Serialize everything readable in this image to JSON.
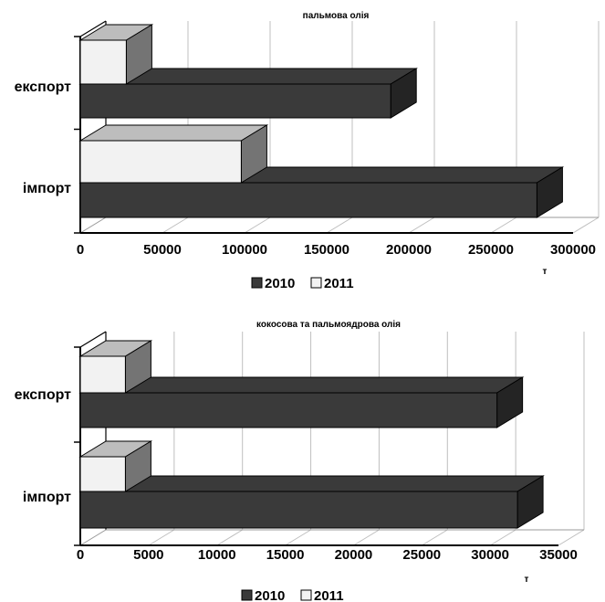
{
  "chart_data": [
    {
      "type": "bar",
      "orientation": "horizontal",
      "title": "пальмова олія",
      "categories": [
        "експорт",
        "імпорт"
      ],
      "series": [
        {
          "name": "2010",
          "values": [
            189000,
            278000
          ],
          "color": "#3a3a3a"
        },
        {
          "name": "2011",
          "values": [
            28000,
            98000
          ],
          "color": "#f2f2f2"
        }
      ],
      "xlim": [
        0,
        300000
      ],
      "xticks": [
        "0",
        "50000",
        "100000",
        "150000",
        "200000",
        "250000",
        "300000"
      ],
      "unit": "т",
      "grid": true,
      "legend": "bottom"
    },
    {
      "type": "bar",
      "orientation": "horizontal",
      "title": "кокосова та пальмоядрова олія",
      "categories": [
        "експорт",
        "імпорт"
      ],
      "series": [
        {
          "name": "2010",
          "values": [
            30500,
            32000
          ],
          "color": "#3a3a3a"
        },
        {
          "name": "2011",
          "values": [
            3300,
            3300
          ],
          "color": "#f2f2f2"
        }
      ],
      "xlim": [
        0,
        35000
      ],
      "xticks": [
        "0",
        "5000",
        "10000",
        "15000",
        "20000",
        "25000",
        "30000",
        "35000"
      ],
      "unit": "т",
      "grid": true,
      "legend": "bottom"
    }
  ]
}
